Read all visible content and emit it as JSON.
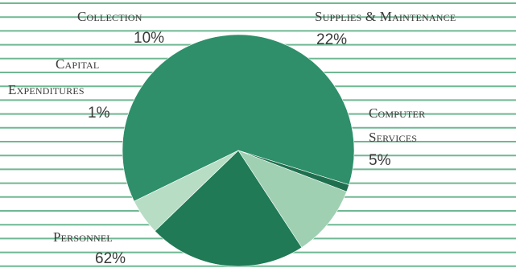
{
  "chart_data": {
    "type": "pie",
    "slices": [
      {
        "label": "Personnel",
        "value": 62,
        "value_label": "62%",
        "color": "#2e8f6a"
      },
      {
        "label": "Capital Expenditures",
        "value": 1,
        "value_label": "1%",
        "color": "#1f6f4e"
      },
      {
        "label": "Collection",
        "value": 10,
        "value_label": "10%",
        "color": "#9fd0b2"
      },
      {
        "label": "Supplies & Maintenance",
        "value": 22,
        "value_label": "22%",
        "color": "#1f7a55"
      },
      {
        "label": "Computer Services",
        "value": 5,
        "value_label": "5%",
        "color": "#b7ddc4"
      }
    ],
    "background_lines_color": "#6fb893",
    "legend": "none"
  },
  "labels": {
    "collection": {
      "name": "Collection",
      "pct": "10%"
    },
    "supplies": {
      "name": "Supplies & Maintenance",
      "pct": "22%"
    },
    "capital": {
      "line1": "Capital",
      "line2": "Expenditures",
      "pct": "1%"
    },
    "computer": {
      "line1": "Computer",
      "line2": "Services",
      "pct": "5%"
    },
    "personnel": {
      "name": "Personnel",
      "pct": "62%"
    }
  }
}
